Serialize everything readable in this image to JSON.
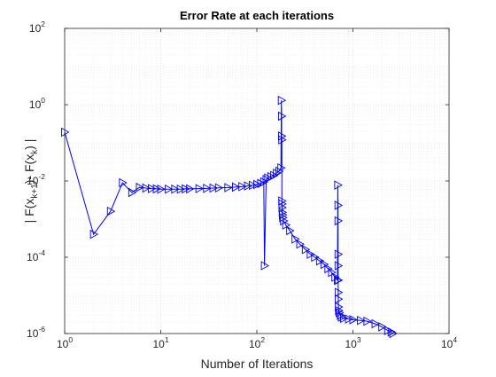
{
  "chart_data": {
    "type": "line",
    "title": "Error Rate at each iterations",
    "xlabel": "Number of Iterations",
    "ylabel": "| F(x_{k+1})- F(x_k) |",
    "ylabel_parts": {
      "pre": "| F(x",
      "sub1": "k+1",
      "mid": ")- F(x",
      "sub2": "k",
      "post": ") |"
    },
    "x_scale": "log",
    "y_scale": "log",
    "xlim": [
      1,
      10000
    ],
    "ylim": [
      1e-06,
      100
    ],
    "x_ticks": [
      {
        "value": 1,
        "base": "10",
        "exp": "0"
      },
      {
        "value": 10,
        "base": "10",
        "exp": "1"
      },
      {
        "value": 100,
        "base": "10",
        "exp": "2"
      },
      {
        "value": 1000,
        "base": "10",
        "exp": "3"
      },
      {
        "value": 10000,
        "base": "10",
        "exp": "4"
      }
    ],
    "y_ticks": [
      {
        "value": 1e-06,
        "base": "10",
        "exp": "-6"
      },
      {
        "value": 0.0001,
        "base": "10",
        "exp": "-4"
      },
      {
        "value": 0.01,
        "base": "10",
        "exp": "-2"
      },
      {
        "value": 1,
        "base": "10",
        "exp": "0"
      },
      {
        "value": 100,
        "base": "10",
        "exp": "2"
      }
    ],
    "grid": true,
    "minor_grid": true,
    "line_color": "#0000ff",
    "marker": "right-triangle",
    "series": [
      {
        "x": [
          1,
          2,
          3,
          4,
          5,
          6,
          7,
          8,
          9,
          10,
          12,
          14,
          16,
          18,
          20,
          25,
          30,
          35,
          40,
          50,
          60,
          70,
          80,
          90,
          100,
          110,
          118,
          120,
          125,
          130,
          140,
          150,
          160,
          170,
          178,
          180,
          181,
          181,
          182,
          182,
          183,
          183,
          184,
          185,
          186,
          190,
          200,
          220,
          250,
          280,
          320,
          360,
          400,
          450,
          500,
          550,
          600,
          650,
          690,
          695,
          700,
          700,
          701,
          701,
          702,
          703,
          704,
          706,
          710,
          720,
          740,
          760,
          800,
          900,
          1000,
          1200,
          1400,
          1700,
          2000,
          2300,
          2500,
          2600
        ],
        "y": [
          0.19,
          0.0004,
          0.0016,
          0.009,
          0.005,
          0.0068,
          0.0065,
          0.0063,
          0.0062,
          0.0061,
          0.0061,
          0.0061,
          0.0061,
          0.0062,
          0.0062,
          0.0063,
          0.0064,
          0.0065,
          0.0066,
          0.0067,
          0.0069,
          0.0071,
          0.0074,
          0.0077,
          0.0081,
          0.0086,
          0.0095,
          6e-05,
          0.011,
          0.012,
          0.013,
          0.014,
          0.016,
          0.018,
          0.022,
          1.3,
          0.5,
          0.15,
          0.12,
          0.003,
          0.0025,
          0.002,
          0.0015,
          0.0013,
          0.0011,
          0.0009,
          0.0007,
          0.0005,
          0.0003,
          0.00022,
          0.00016,
          0.00012,
          0.0001,
          8e-05,
          6.5e-05,
          5e-05,
          4e-05,
          3e-05,
          2.5e-05,
          0.0078,
          0.0023,
          0.0009,
          0.00012,
          6e-05,
          2.5e-05,
          1.2e-05,
          8e-06,
          5e-06,
          4e-06,
          3.5e-06,
          3e-06,
          2.7e-06,
          2.5e-06,
          2.4e-06,
          2.3e-06,
          2.2e-06,
          2.1e-06,
          1.8e-06,
          1.5e-06,
          1.2e-06,
          1.1e-06,
          1e-06
        ]
      }
    ]
  }
}
